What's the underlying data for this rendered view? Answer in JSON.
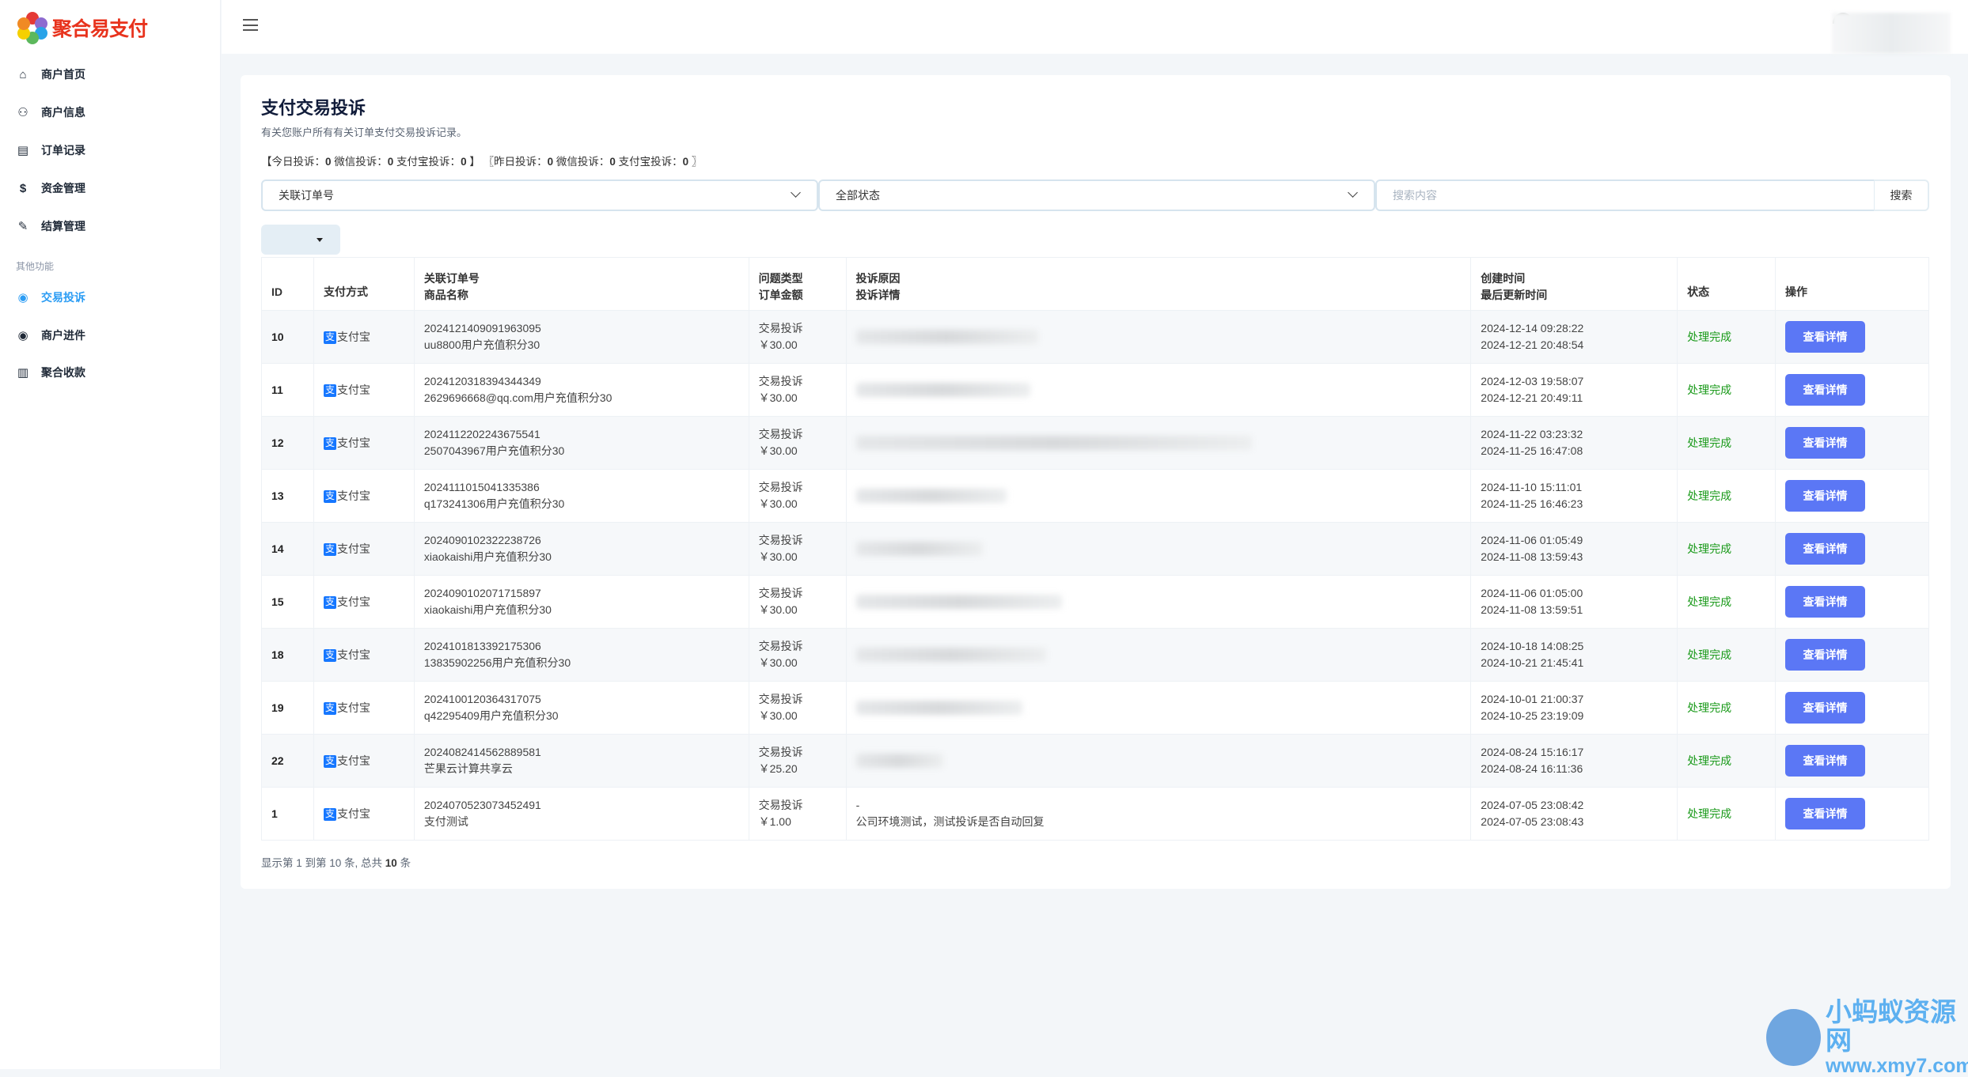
{
  "app": {
    "logo_text": "聚合易支付"
  },
  "sidebar": {
    "items": [
      {
        "label": "商户首页",
        "icon": "home-icon"
      },
      {
        "label": "商户信息",
        "icon": "users-icon"
      },
      {
        "label": "订单记录",
        "icon": "receipt-icon"
      },
      {
        "label": "资金管理",
        "icon": "money-icon"
      },
      {
        "label": "结算管理",
        "icon": "edit-icon"
      }
    ],
    "section_label": "其他功能",
    "other_items": [
      {
        "label": "交易投诉",
        "icon": "complaint-icon",
        "active": true
      },
      {
        "label": "商户进件",
        "icon": "onboarding-icon"
      },
      {
        "label": "聚合收款",
        "icon": "barcode-icon"
      }
    ]
  },
  "page": {
    "title": "支付交易投诉",
    "subtitle": "有关您账户所有有关订单支付交易投诉记录。",
    "stats": {
      "today_label": "【今日投诉：",
      "today": "0",
      "today_wx_label": " 微信投诉：",
      "today_wx": "0",
      "today_ali_label": " 支付宝投诉：",
      "today_ali": "0",
      "today_end": " 】",
      "yday_label": "〖昨日投诉：",
      "yday": "0",
      "yday_wx_label": " 微信投诉：",
      "yday_wx": "0",
      "yday_ali_label": " 支付宝投诉：",
      "yday_ali": "0",
      "yday_end": " 〗"
    }
  },
  "filters": {
    "field_select": "关联订单号",
    "status_select": "全部状态",
    "search_placeholder": "搜索内容",
    "search_button": "搜索"
  },
  "table": {
    "headers": {
      "id": "ID",
      "pay": "支付方式",
      "order1": "关联订单号",
      "order2": "商品名称",
      "type1": "问题类型",
      "type2": "订单金额",
      "reason1": "投诉原因",
      "reason2": "投诉详情",
      "time1": "创建时间",
      "time2": "最后更新时间",
      "status": "状态",
      "action": "操作"
    },
    "pay_icon_text": "支",
    "detail_button": "查看详情",
    "rows": [
      {
        "id": "10",
        "pay": "支付宝",
        "order": "2024121409091963095",
        "product": "uu8800用户充值积分30",
        "type": "交易投诉",
        "amount": "￥30.00",
        "reason": "",
        "detail": "",
        "created": "2024-12-14 09:28:22",
        "updated": "2024-12-21 20:48:54",
        "status": "处理完成"
      },
      {
        "id": "11",
        "pay": "支付宝",
        "order": "2024120318394344349",
        "product": "2629696668@qq.com用户充值积分30",
        "type": "交易投诉",
        "amount": "￥30.00",
        "reason": "",
        "detail": "",
        "created": "2024-12-03 19:58:07",
        "updated": "2024-12-21 20:49:11",
        "status": "处理完成"
      },
      {
        "id": "12",
        "pay": "支付宝",
        "order": "2024112202243675541",
        "product": "2507043967用户充值积分30",
        "type": "交易投诉",
        "amount": "￥30.00",
        "reason": "",
        "detail": "",
        "created": "2024-11-22 03:23:32",
        "updated": "2024-11-25 16:47:08",
        "status": "处理完成"
      },
      {
        "id": "13",
        "pay": "支付宝",
        "order": "2024111015041335386",
        "product": "q173241306用户充值积分30",
        "type": "交易投诉",
        "amount": "￥30.00",
        "reason": "",
        "detail": "",
        "created": "2024-11-10 15:11:01",
        "updated": "2024-11-25 16:46:23",
        "status": "处理完成"
      },
      {
        "id": "14",
        "pay": "支付宝",
        "order": "2024090102322238726",
        "product": "xiaokaishi用户充值积分30",
        "type": "交易投诉",
        "amount": "￥30.00",
        "reason": "",
        "detail": "",
        "created": "2024-11-06 01:05:49",
        "updated": "2024-11-08 13:59:43",
        "status": "处理完成"
      },
      {
        "id": "15",
        "pay": "支付宝",
        "order": "2024090102071715897",
        "product": "xiaokaishi用户充值积分30",
        "type": "交易投诉",
        "amount": "￥30.00",
        "reason": "",
        "detail": "",
        "created": "2024-11-06 01:05:00",
        "updated": "2024-11-08 13:59:51",
        "status": "处理完成"
      },
      {
        "id": "18",
        "pay": "支付宝",
        "order": "2024101813392175306",
        "product": "13835902256用户充值积分30",
        "type": "交易投诉",
        "amount": "￥30.00",
        "reason": "",
        "detail": "",
        "created": "2024-10-18 14:08:25",
        "updated": "2024-10-21 21:45:41",
        "status": "处理完成"
      },
      {
        "id": "19",
        "pay": "支付宝",
        "order": "2024100120364317075",
        "product": "q42295409用户充值积分30",
        "type": "交易投诉",
        "amount": "￥30.00",
        "reason": "",
        "detail": "",
        "created": "2024-10-01 21:00:37",
        "updated": "2024-10-25 23:19:09",
        "status": "处理完成"
      },
      {
        "id": "22",
        "pay": "支付宝",
        "order": "2024082414562889581",
        "product": "芒果云计算共享云",
        "type": "交易投诉",
        "amount": "￥25.20",
        "reason": "",
        "detail": "",
        "created": "2024-08-24 15:16:17",
        "updated": "2024-08-24 16:11:36",
        "status": "处理完成"
      },
      {
        "id": "1",
        "pay": "支付宝",
        "order": "2024070523073452491",
        "product": "支付测试",
        "type": "交易投诉",
        "amount": "￥1.00",
        "reason": "-",
        "detail": "公司环境测试，测试投诉是否自动回复",
        "created": "2024-07-05 23:08:42",
        "updated": "2024-07-05 23:08:43",
        "status": "处理完成"
      }
    ],
    "footer": {
      "pre": "显示第 1 到第 10 条, 总共 ",
      "total": "10",
      "post": " 条"
    }
  },
  "colors": {
    "accent": "#5b77f5",
    "active_nav": "#2a9cf4",
    "status_done": "#1a9a1a",
    "alipay": "#1677ff",
    "logo": "#e8331d"
  },
  "watermark": {
    "line1": "小蚂蚁资源网",
    "line2": "www.xmy7.com"
  }
}
